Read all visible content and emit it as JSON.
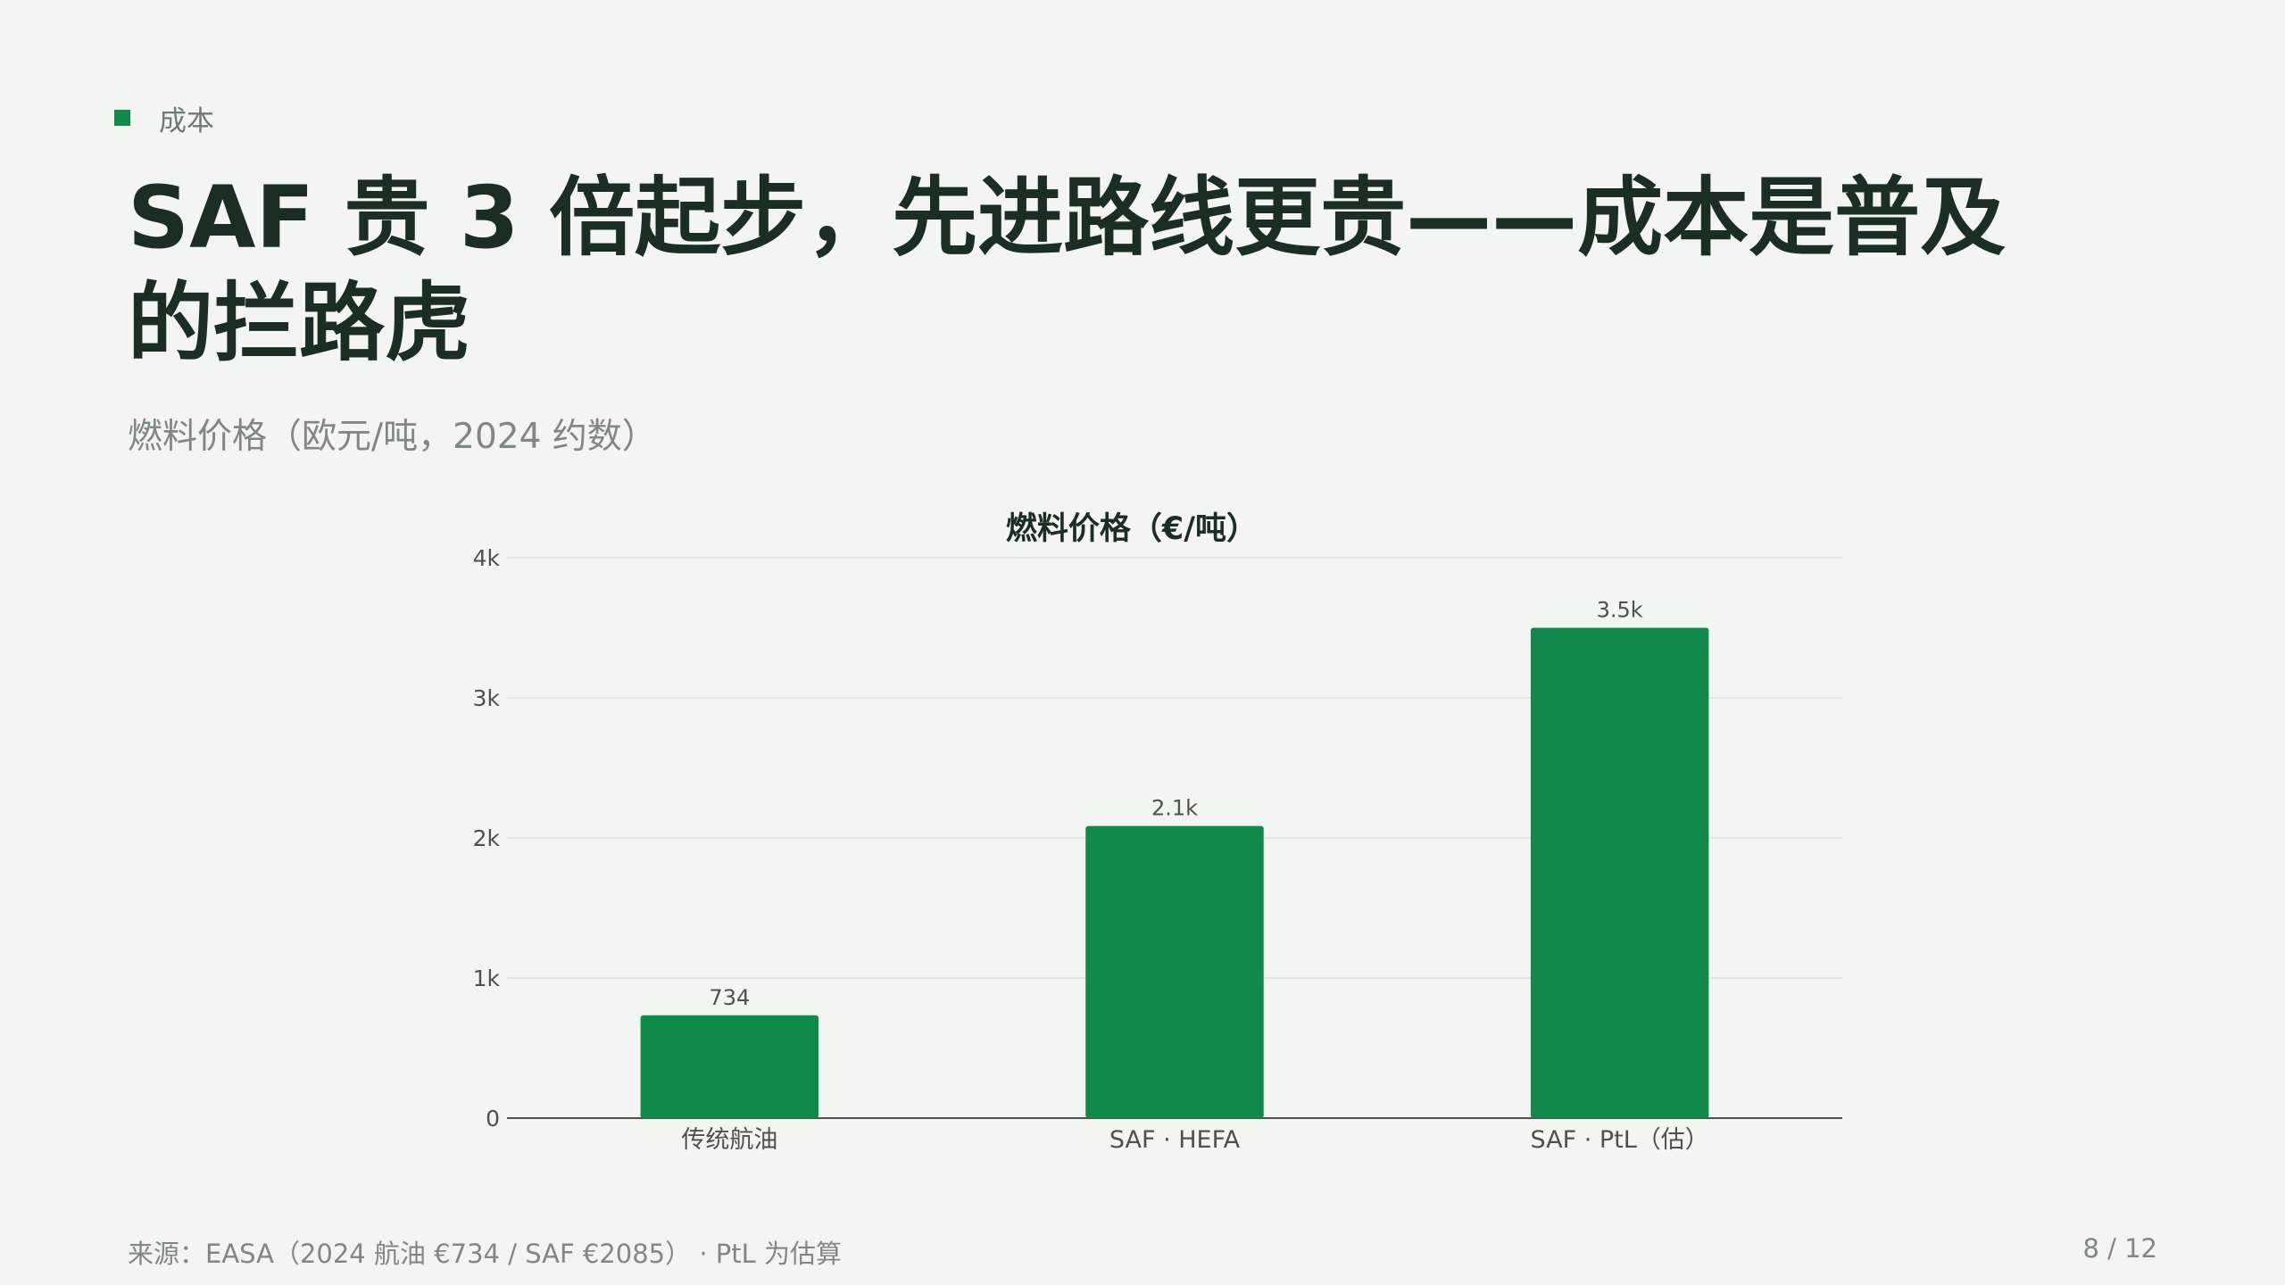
{
  "section": {
    "label": "成本",
    "accent": "#0f8a4b"
  },
  "title": "SAF 贵 3 倍起步，先进路线更贵——成本是普及的拦路虎",
  "subtitle": "燃料价格（欧元/吨，2024 约数）",
  "chart_data": {
    "type": "bar",
    "title": "燃料价格（€/吨）",
    "categories": [
      "传统航油",
      "SAF · HEFA",
      "SAF · PtL（估）"
    ],
    "values": [
      734,
      2085,
      3500
    ],
    "data_labels": [
      "734",
      "2.1k",
      "3.5k"
    ],
    "ylim": [
      0,
      4000
    ],
    "yticks": [
      0,
      1000,
      2000,
      3000,
      4000
    ],
    "ytick_labels": [
      "0",
      "1k",
      "2k",
      "3k",
      "4k"
    ],
    "grid": true,
    "bar_color": "#0f8a4b"
  },
  "footer": {
    "source": "来源：EASA（2024 航油 €734 / SAF €2085） · PtL 为估算",
    "page": "8 / 12"
  }
}
